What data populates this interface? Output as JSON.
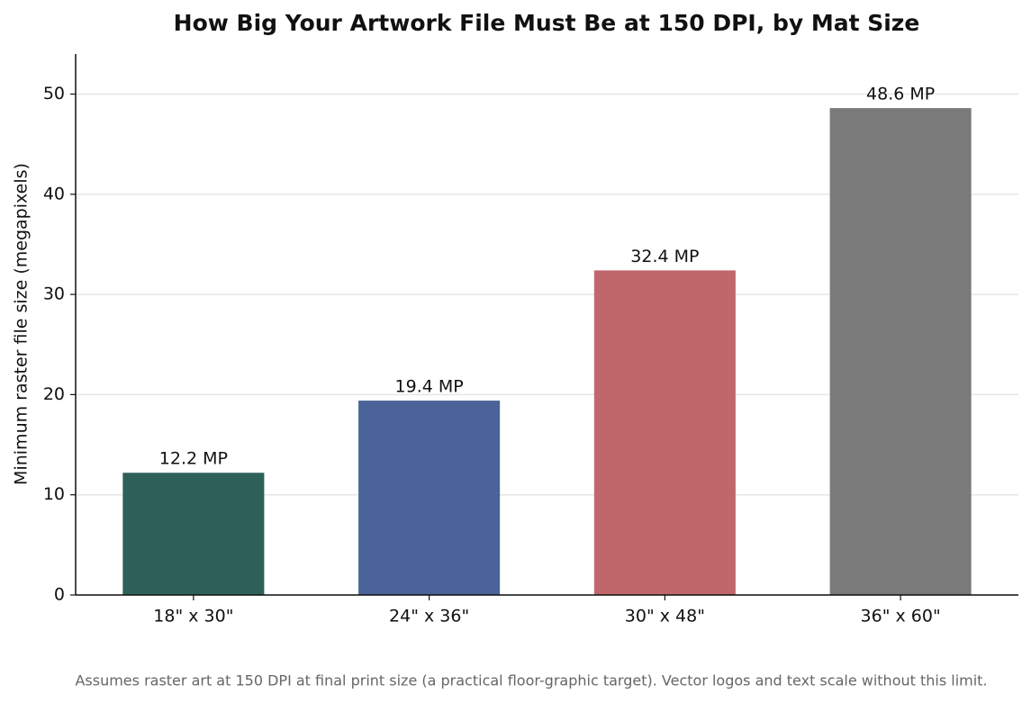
{
  "chart_data": {
    "type": "bar",
    "title": "How Big Your Artwork File Must Be at 150 DPI, by Mat Size",
    "ylabel": "Minimum raster file size (megapixels)",
    "footnote": "Assumes raster art at 150 DPI at final print size (a practical floor-graphic target). Vector logos and text scale without this limit.",
    "categories": [
      "18\" x 30\"",
      "24\" x 36\"",
      "30\" x 48\"",
      "36\" x 60\""
    ],
    "values": [
      12.2,
      19.4,
      32.4,
      48.6
    ],
    "value_labels": [
      "12.2 MP",
      "19.4 MP",
      "32.4 MP",
      "48.6 MP"
    ],
    "colors": [
      "#2e6059",
      "#4a6399",
      "#c0676b",
      "#7a7a7a"
    ],
    "ylim": [
      0,
      54
    ],
    "yticks": [
      0,
      10,
      20,
      30,
      40,
      50
    ],
    "grid": true
  }
}
